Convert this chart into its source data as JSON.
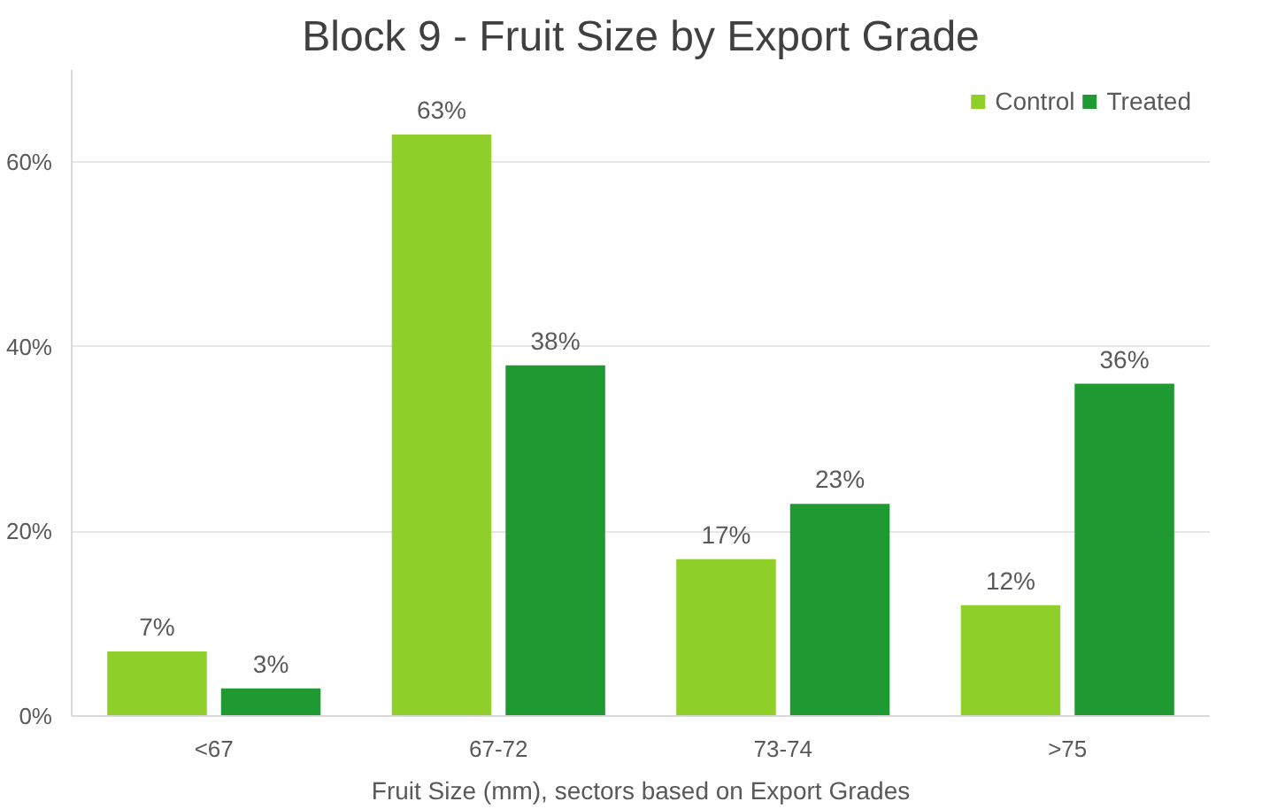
{
  "chart_data": {
    "type": "bar",
    "title": "Block 9 - Fruit Size by Export Grade",
    "xlabel": "Fruit Size (mm), sectors based on Export Grades",
    "categories": [
      "<67",
      "67-72",
      "73-74",
      ">75"
    ],
    "series": [
      {
        "name": "Control",
        "color": "#8fcf2a",
        "values": [
          7,
          63,
          17,
          12
        ],
        "value_labels": [
          "7%",
          "63%",
          "17%",
          "12%"
        ]
      },
      {
        "name": "Treated",
        "color": "#1f9a32",
        "values": [
          3,
          38,
          23,
          36
        ],
        "value_labels": [
          "3%",
          "38%",
          "23%",
          "36%"
        ]
      }
    ],
    "ylim": [
      0,
      70
    ],
    "yticks": [
      {
        "value": 0,
        "label": "0%"
      },
      {
        "value": 20,
        "label": "20%"
      },
      {
        "value": 40,
        "label": "40%"
      },
      {
        "value": 60,
        "label": "60%"
      }
    ],
    "grid": "y",
    "legend": "top right"
  }
}
